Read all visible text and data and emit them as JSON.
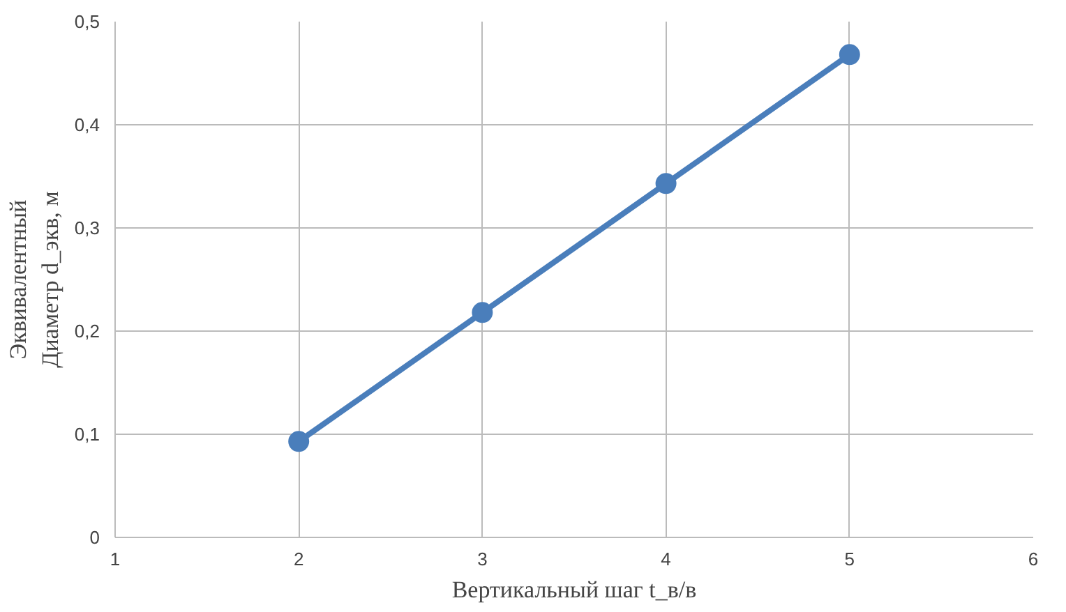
{
  "chart_data": {
    "type": "line",
    "xlabel": "Вертикальный шаг t_в/в",
    "ylabel": "Эквивалентный\nДиаметр d_экв, м",
    "x": [
      2,
      3,
      4,
      5
    ],
    "series": [
      {
        "color": "#4a7ebb",
        "values": [
          0.093,
          0.218,
          0.343,
          0.468
        ]
      }
    ],
    "xlim": [
      1,
      6
    ],
    "xticks": [
      1,
      2,
      3,
      4,
      5,
      6
    ],
    "ylim": [
      0,
      0.5
    ],
    "yticks": [
      {
        "value": 0,
        "label": "0"
      },
      {
        "value": 0.1,
        "label": "0,1"
      },
      {
        "value": 0.2,
        "label": "0,2"
      },
      {
        "value": 0.3,
        "label": "0,3"
      },
      {
        "value": 0.4,
        "label": "0,4"
      },
      {
        "value": 0.5,
        "label": "0,5"
      }
    ],
    "grid": true,
    "marker": "circle",
    "line_style": "solid"
  }
}
